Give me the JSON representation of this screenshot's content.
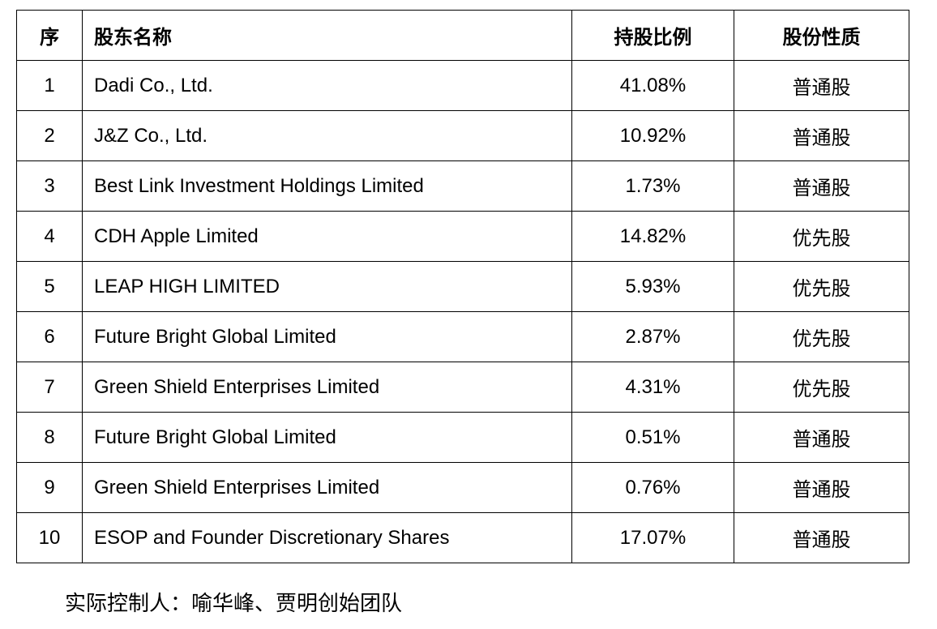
{
  "table": {
    "headers": {
      "index": "序",
      "name": "股东名称",
      "ratio": "持股比例",
      "type": "股份性质"
    },
    "rows": [
      {
        "index": "1",
        "name": "Dadi Co., Ltd.",
        "ratio": "41.08%",
        "type": "普通股"
      },
      {
        "index": "2",
        "name": "J&Z Co., Ltd.",
        "ratio": "10.92%",
        "type": "普通股"
      },
      {
        "index": "3",
        "name": "Best Link Investment Holdings Limited",
        "ratio": "1.73%",
        "type": "普通股"
      },
      {
        "index": "4",
        "name": "CDH Apple Limited",
        "ratio": "14.82%",
        "type": "优先股"
      },
      {
        "index": "5",
        "name": "LEAP HIGH LIMITED",
        "ratio": "5.93%",
        "type": "优先股"
      },
      {
        "index": "6",
        "name": "Future Bright Global Limited",
        "ratio": "2.87%",
        "type": "优先股"
      },
      {
        "index": "7",
        "name": "Green Shield Enterprises Limited",
        "ratio": "4.31%",
        "type": "优先股"
      },
      {
        "index": "8",
        "name": "Future Bright Global Limited",
        "ratio": "0.51%",
        "type": "普通股"
      },
      {
        "index": "9",
        "name": "Green Shield Enterprises Limited",
        "ratio": "0.76%",
        "type": "普通股"
      },
      {
        "index": "10",
        "name": "ESOP and Founder Discretionary Shares",
        "ratio": "17.07%",
        "type": "普通股"
      }
    ]
  },
  "footnote": "实际控制人：喻华峰、贾明创始团队"
}
